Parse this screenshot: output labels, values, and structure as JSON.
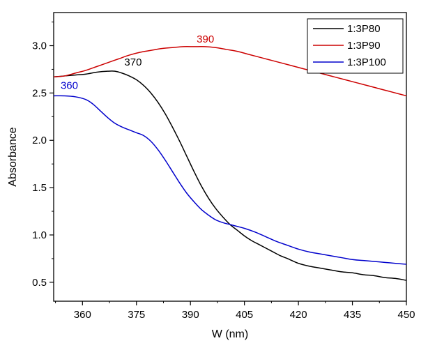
{
  "chart_data": {
    "type": "line",
    "title": "",
    "xlabel": "W (nm)",
    "ylabel": "Absorbance",
    "xlim": [
      352,
      450
    ],
    "ylim": [
      0.3,
      3.35
    ],
    "xticks": [
      360,
      375,
      390,
      405,
      420,
      435,
      450
    ],
    "yticks": [
      0.5,
      1.0,
      1.5,
      2.0,
      2.5,
      3.0
    ],
    "xtick_labels": [
      "360",
      "375",
      "390",
      "405",
      "420",
      "435",
      "450"
    ],
    "ytick_labels": [
      "0.5",
      "1.0",
      "1.5",
      "2.0",
      "2.5",
      "3.0"
    ],
    "legend_position": "top-right",
    "series": [
      {
        "name": "1:3P80",
        "color": "#000000",
        "x": [
          352,
          355,
          358,
          361,
          364,
          367,
          369,
          371,
          373,
          375,
          377,
          379,
          381,
          383,
          385,
          387,
          389,
          391,
          393,
          395,
          397,
          399,
          401,
          403,
          405,
          407,
          409,
          411,
          413,
          415,
          417,
          420,
          423,
          426,
          429,
          432,
          435,
          438,
          441,
          444,
          447,
          450
        ],
        "y": [
          2.67,
          2.68,
          2.69,
          2.7,
          2.72,
          2.73,
          2.73,
          2.71,
          2.68,
          2.64,
          2.58,
          2.5,
          2.4,
          2.28,
          2.14,
          1.99,
          1.83,
          1.67,
          1.52,
          1.39,
          1.28,
          1.19,
          1.11,
          1.05,
          0.99,
          0.94,
          0.9,
          0.86,
          0.82,
          0.78,
          0.75,
          0.7,
          0.67,
          0.65,
          0.63,
          0.61,
          0.6,
          0.58,
          0.57,
          0.55,
          0.54,
          0.52
        ]
      },
      {
        "name": "1:3P90",
        "color": "#cc0000",
        "x": [
          352,
          355,
          358,
          361,
          364,
          367,
          370,
          373,
          376,
          379,
          382,
          385,
          388,
          391,
          394,
          397,
          400,
          403,
          406,
          409,
          412,
          415,
          418,
          421,
          424,
          427,
          430,
          433,
          436,
          439,
          442,
          445,
          448,
          450
        ],
        "y": [
          2.67,
          2.68,
          2.71,
          2.74,
          2.78,
          2.82,
          2.86,
          2.9,
          2.93,
          2.95,
          2.97,
          2.98,
          2.99,
          2.99,
          2.99,
          2.98,
          2.96,
          2.94,
          2.91,
          2.88,
          2.85,
          2.82,
          2.79,
          2.76,
          2.73,
          2.7,
          2.67,
          2.64,
          2.61,
          2.58,
          2.55,
          2.52,
          2.49,
          2.47
        ]
      },
      {
        "name": "1:3P100",
        "color": "#0000cc",
        "x": [
          352,
          355,
          358,
          361,
          363,
          365,
          367,
          369,
          371,
          373,
          375,
          377,
          379,
          381,
          383,
          385,
          387,
          389,
          391,
          393,
          395,
          397,
          399,
          401,
          403,
          405,
          408,
          411,
          414,
          417,
          420,
          423,
          426,
          429,
          432,
          435,
          438,
          441,
          444,
          447,
          450
        ],
        "y": [
          2.47,
          2.47,
          2.46,
          2.43,
          2.38,
          2.31,
          2.24,
          2.18,
          2.14,
          2.11,
          2.08,
          2.05,
          1.99,
          1.9,
          1.79,
          1.67,
          1.55,
          1.44,
          1.35,
          1.27,
          1.21,
          1.16,
          1.13,
          1.11,
          1.09,
          1.07,
          1.03,
          0.98,
          0.93,
          0.89,
          0.85,
          0.82,
          0.8,
          0.78,
          0.76,
          0.74,
          0.73,
          0.72,
          0.71,
          0.7,
          0.69
        ]
      }
    ],
    "annotations": [
      {
        "text": "370",
        "x": 370,
        "y": 2.73,
        "color": "#000000"
      },
      {
        "text": "390",
        "x": 393,
        "y": 2.99,
        "color": "#cc0000"
      },
      {
        "text": "360",
        "x": 355,
        "y": 2.47,
        "color": "#0000cc"
      }
    ]
  }
}
